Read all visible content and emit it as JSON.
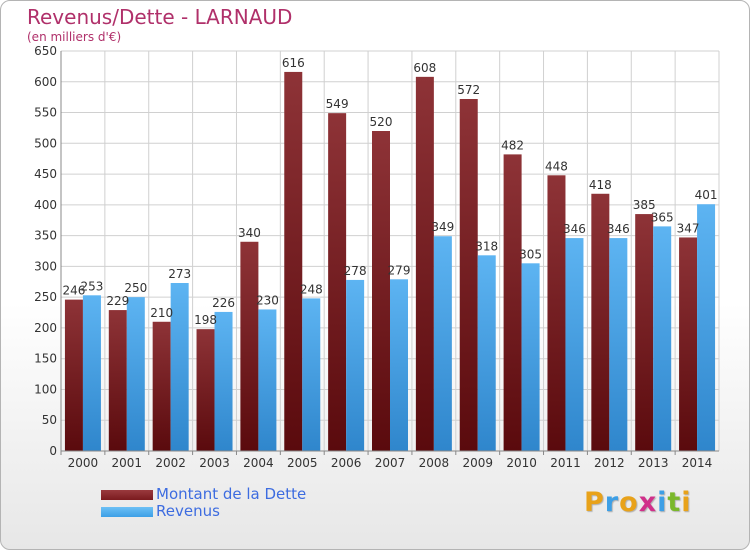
{
  "header": {
    "title": "Revenus/Dette - LARNAUD",
    "subtitle": "(en milliers d'€)"
  },
  "legend": {
    "items": [
      {
        "label": "Montant de la Dette",
        "color": "#7a1a1e"
      },
      {
        "label": "Revenus",
        "color": "#3d9fe6"
      }
    ]
  },
  "logo": {
    "text": "Proxiti",
    "colors": [
      "#e8a21a",
      "#3d9fe6",
      "#e8a21a",
      "#d0308a",
      "#3d9fe6",
      "#7ab82a",
      "#e8a21a"
    ]
  },
  "chart_data": {
    "type": "bar",
    "categories": [
      "2000",
      "2001",
      "2002",
      "2003",
      "2004",
      "2005",
      "2006",
      "2007",
      "2008",
      "2009",
      "2010",
      "2011",
      "2012",
      "2013",
      "2014"
    ],
    "series": [
      {
        "name": "Montant de la Dette",
        "values": [
          246,
          229,
          210,
          198,
          340,
          616,
          549,
          520,
          608,
          572,
          482,
          448,
          418,
          385,
          347
        ],
        "color": "#7a1a1e"
      },
      {
        "name": "Revenus",
        "values": [
          253,
          250,
          273,
          226,
          230,
          248,
          278,
          279,
          349,
          318,
          305,
          346,
          346,
          365,
          401
        ],
        "color": "#3d9fe6"
      }
    ],
    "ylim": [
      0,
      650
    ],
    "yticks": [
      0,
      50,
      100,
      150,
      200,
      250,
      300,
      350,
      400,
      450,
      500,
      550,
      600,
      650
    ],
    "grid": true,
    "legend_position": "bottom-left"
  }
}
